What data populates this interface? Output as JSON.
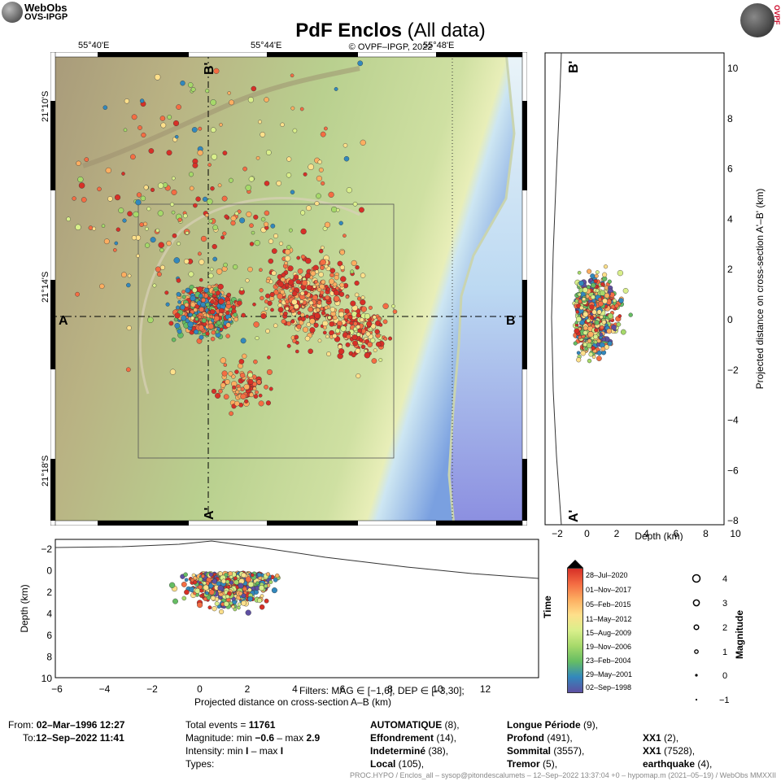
{
  "header": {
    "logo_left_line1": "WebObs",
    "logo_left_line2": "OVS-IPGP",
    "logo_right_text": "OVPF",
    "title_bold": "PdF Enclos",
    "title_rest": "(All data)",
    "copyright": "© OVPF–IPGP, 2022"
  },
  "map": {
    "lon_labels": [
      "55°40'E",
      "55°44'E",
      "55°48'E"
    ],
    "lat_labels": [
      "21°10'S",
      "21°14'S",
      "21°18'S"
    ],
    "section_A": "A",
    "section_B": "B",
    "section_A_prime": "A'",
    "section_B_prime": "B'"
  },
  "right_section": {
    "ylabel": "Projected distance on cross-section A'–B' (km)",
    "xlabel": "Depth (km)",
    "yticks": [
      "10",
      "8",
      "6",
      "4",
      "2",
      "0",
      "−2",
      "−4",
      "−6",
      "−8"
    ],
    "xticks": [
      "−2",
      "0",
      "2",
      "4",
      "6",
      "8",
      "10"
    ],
    "top_label": "B'",
    "bottom_label": "A'"
  },
  "bottom_section": {
    "ylabel": "Depth (km)",
    "xlabel": "Projected distance on cross-section A–B (km)",
    "yticks": [
      "−2",
      "0",
      "2",
      "4",
      "6",
      "8",
      "10"
    ],
    "xticks": [
      "−6",
      "−4",
      "−2",
      "0",
      "2",
      "4",
      "6",
      "8",
      "10",
      "12"
    ],
    "filters": "Filters:  MAG ∈ [−1,6], DEP ∈ [−3,30];"
  },
  "colorbar": {
    "label": "Time",
    "ticks": [
      "28–Jul–2020",
      "01–Nov–2017",
      "05–Feb–2015",
      "11–May–2012",
      "15–Aug–2009",
      "19–Nov–2006",
      "23–Feb–2004",
      "29–May–2001",
      "02–Sep–1998"
    ],
    "colors": [
      "#d73027",
      "#f46d43",
      "#fdae61",
      "#fee08b",
      "#d9ef8b",
      "#a6d96a",
      "#66bd63",
      "#3288bd",
      "#5e4fa2"
    ]
  },
  "magnitude_legend": {
    "label": "Magnitude",
    "values": [
      "4",
      "3",
      "2",
      "1",
      "0",
      "−1"
    ]
  },
  "info": {
    "from_label": "From:",
    "from_value": "02–Mar–1996 12:27",
    "to_label": "To:",
    "to_value": "12–Sep–2022 11:41",
    "total_label": "Total events = ",
    "total_value": "11761",
    "magnitude_label": "Magnitude: min ",
    "mag_min": "−0.6",
    "mag_sep": " – max ",
    "mag_max": "2.9",
    "intensity_label": "Intensity: min ",
    "int_min": "I",
    "int_sep": " – max ",
    "int_max": "I",
    "types_label": "Types:",
    "types_col1": [
      {
        "name": "AUTOMATIQUE",
        "count": " (8),"
      },
      {
        "name": "Effondrement",
        "count": " (14),"
      },
      {
        "name": "Indeterminé",
        "count": " (38),"
      },
      {
        "name": "Local",
        "count": " (105),"
      }
    ],
    "types_col2": [
      {
        "name": "Longue Période",
        "count": " (9),"
      },
      {
        "name": "Profond",
        "count": " (491),"
      },
      {
        "name": "Sommital",
        "count": " (3557),"
      },
      {
        "name": "Tremor",
        "count": " (5),"
      }
    ],
    "types_col3": [
      {
        "name": "XX1",
        "count": " (2),"
      },
      {
        "name": "XX1",
        "count": " (7528),"
      },
      {
        "name": "earthquake",
        "count": " (4),"
      }
    ]
  },
  "footer": "PROC.HYPO / Enclos_all – sysop@pitondescalumets – 12–Sep–2022 13:37:04 +0 – hypomap.m (2021–05–19) / WebObs MMXXII"
}
